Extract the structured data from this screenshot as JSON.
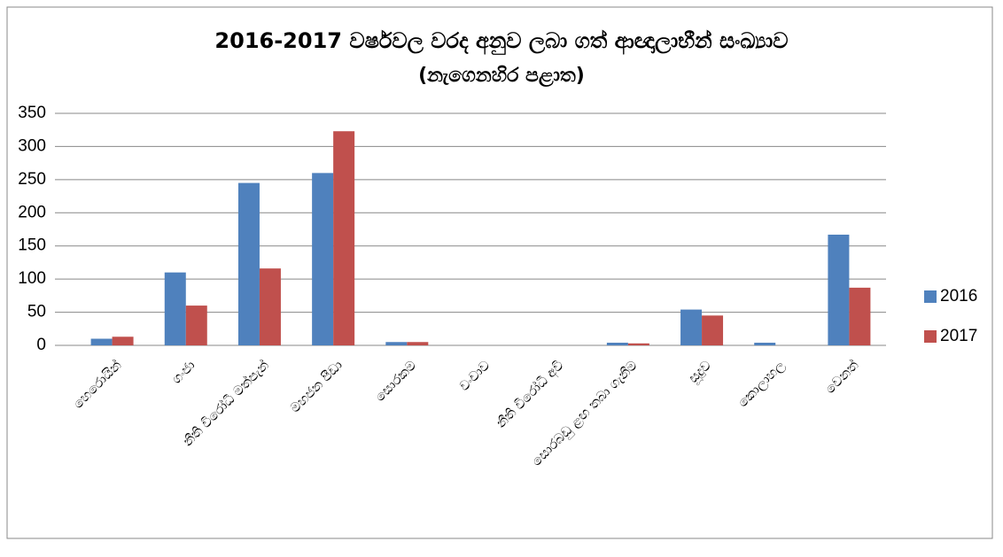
{
  "chart_data": {
    "type": "bar",
    "title": "2016-2017 වර්ෂවල වරද අනුව ලබා ගත් ආඥාලාභීන් සංඛ්‍යාව",
    "subtitle": "(නැගෙනහිර පළාත)",
    "categories": [
      "හෙරොයින්",
      "ගංජා",
      "නීති විරෝධී මත්පැන්",
      "මහජන පීඩා",
      "සොරකම",
      "වංචාව",
      "නීති විරෝධී අවි",
      "සොරබඩු ළඟ තබා ගැනීම",
      "සූදුව",
      "කොලාහල",
      "වෙනත්"
    ],
    "series": [
      {
        "name": "2016",
        "color": "#4f81bd",
        "values": [
          10,
          110,
          245,
          260,
          5,
          0,
          0,
          4,
          54,
          4,
          167
        ]
      },
      {
        "name": "2017",
        "color": "#c0504d",
        "values": [
          13,
          60,
          116,
          323,
          5,
          0,
          0,
          3,
          45,
          0,
          87
        ]
      }
    ],
    "ylim": [
      0,
      350
    ],
    "yticks": [
      0,
      50,
      100,
      150,
      200,
      250,
      300,
      350
    ],
    "grid": true,
    "legend": "right"
  }
}
